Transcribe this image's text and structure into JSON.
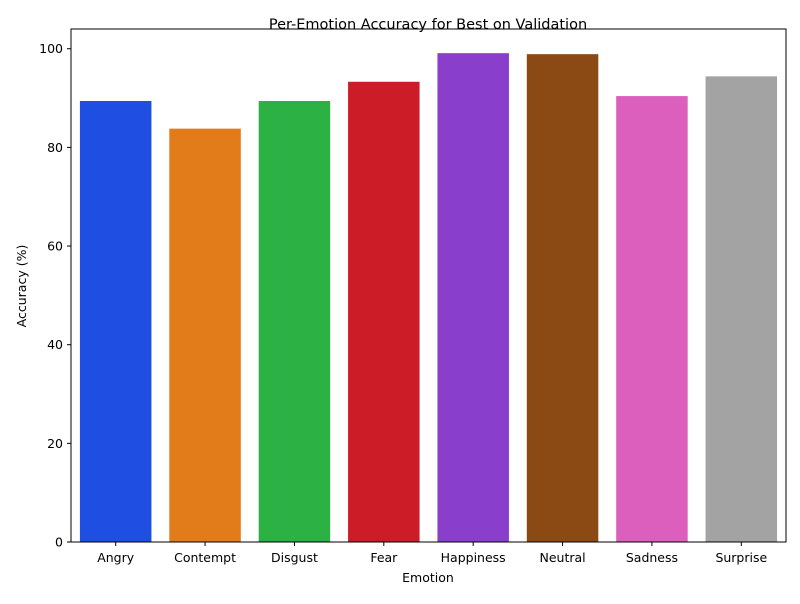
{
  "chart_data": {
    "type": "bar",
    "title": "Per-Emotion Accuracy for Best on Validation",
    "xlabel": "Emotion",
    "ylabel": "Accuracy (%)",
    "categories": [
      "Angry",
      "Contempt",
      "Disgust",
      "Fear",
      "Happiness",
      "Neutral",
      "Sadness",
      "Surprise"
    ],
    "values": [
      89.4,
      83.8,
      89.4,
      93.3,
      99.1,
      98.9,
      90.4,
      94.4
    ],
    "colors": [
      "#1f4ee3",
      "#e27c1a",
      "#2bb144",
      "#cc1c28",
      "#8a3fcc",
      "#8b4a13",
      "#dc5fbd",
      "#a3a3a3"
    ],
    "ylim": [
      0,
      104
    ],
    "yticks": [
      0,
      20,
      40,
      60,
      80,
      100
    ],
    "grid": false,
    "legend": "none"
  }
}
